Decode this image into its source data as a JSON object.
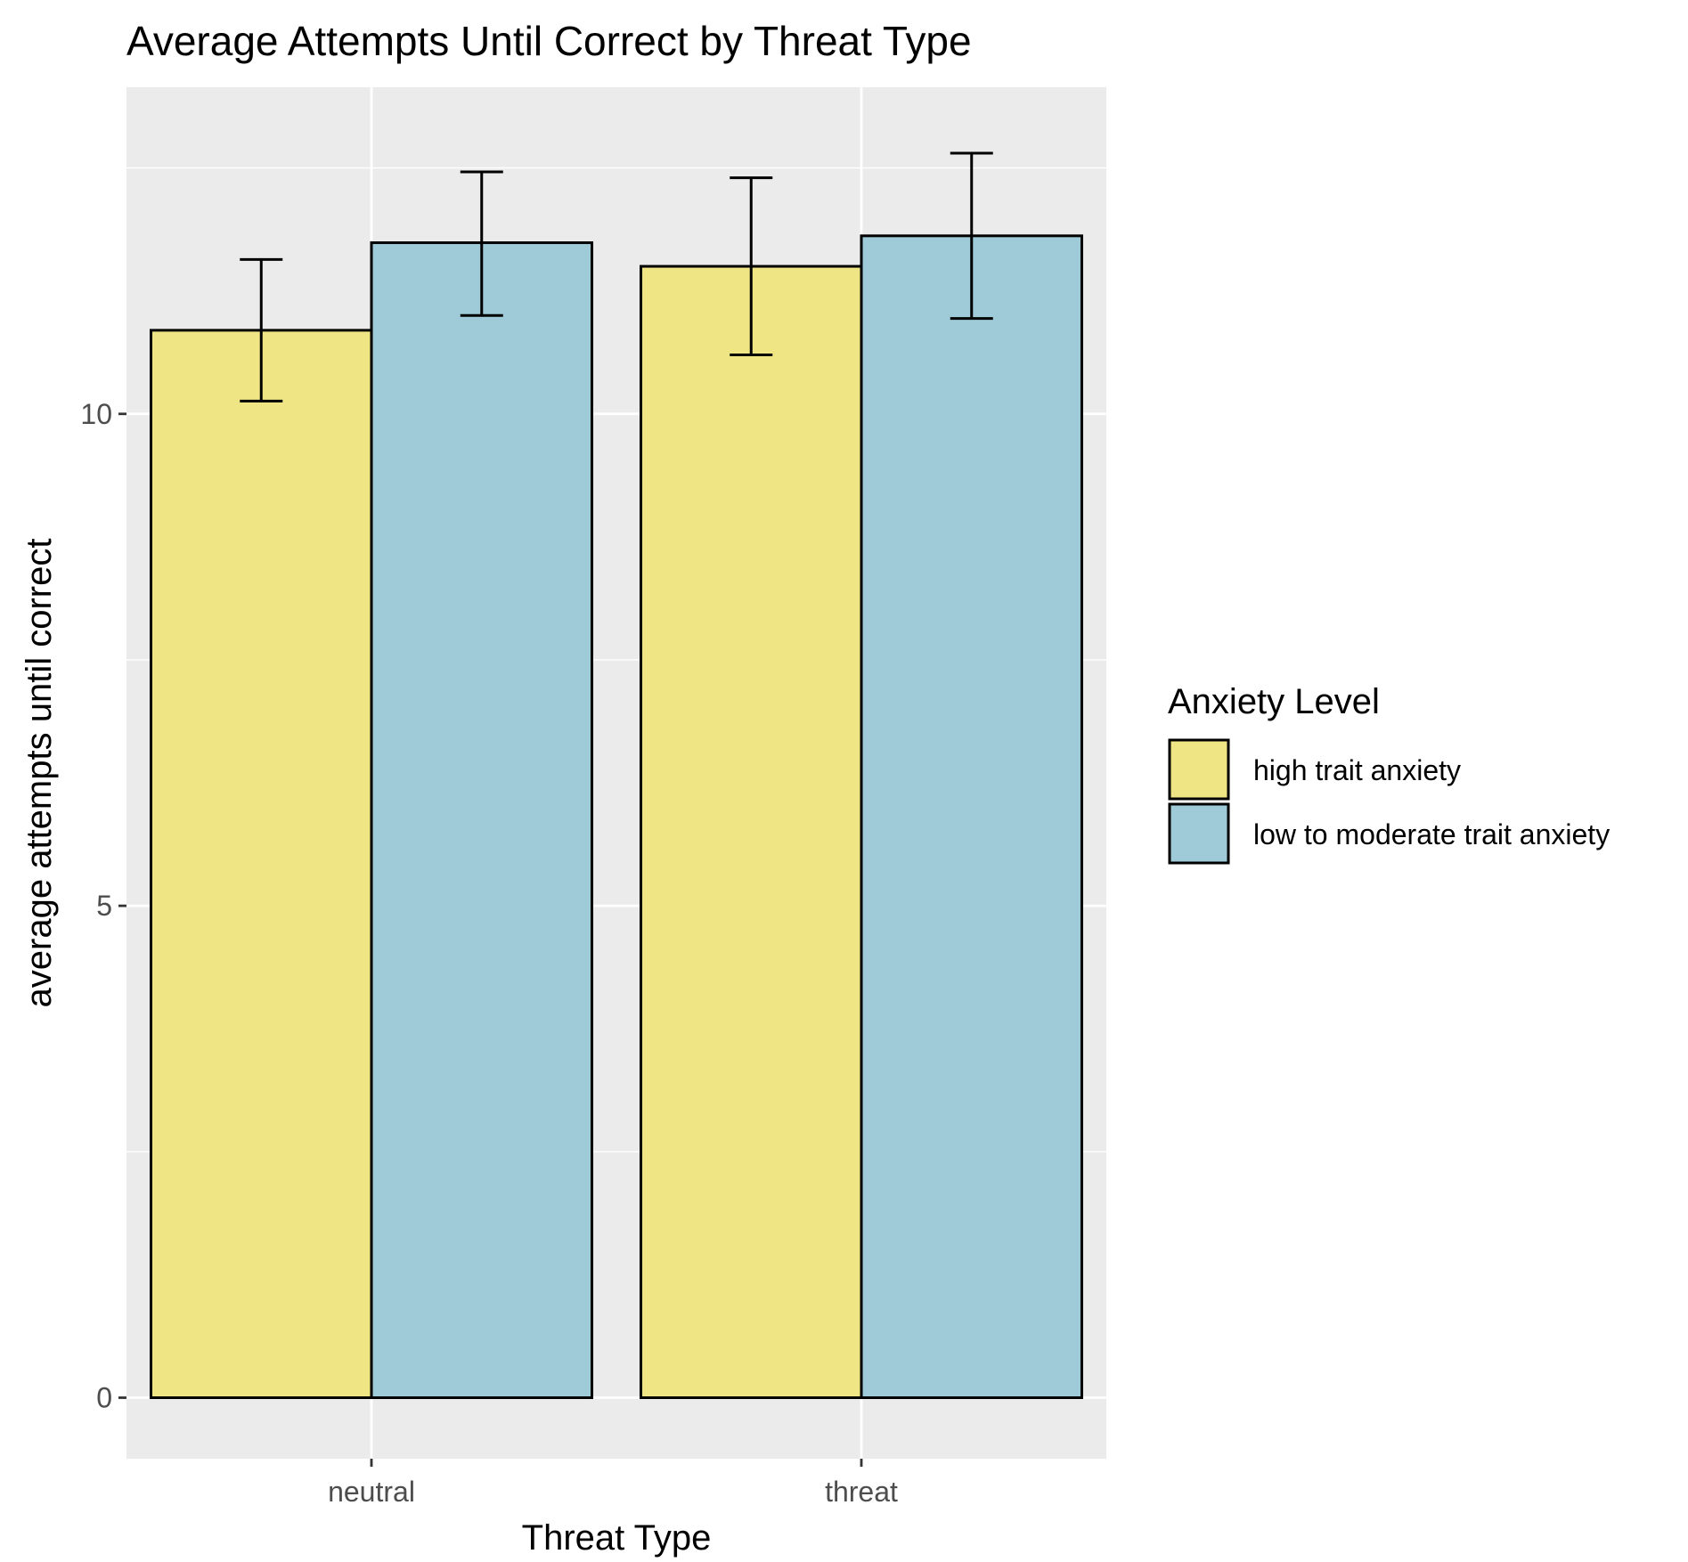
{
  "chart_data": {
    "type": "bar",
    "title": "Average Attempts Until Correct by Threat Type",
    "xlabel": "Threat Type",
    "ylabel": "average attempts until correct",
    "categories": [
      "neutral",
      "threat"
    ],
    "y_ticks": [
      0,
      5,
      10
    ],
    "ylim": [
      -0.62,
      13.32
    ],
    "grid": true,
    "legend": {
      "title": "Anxiety Level",
      "position": "right"
    },
    "series": [
      {
        "name": "high trait anxiety",
        "color": "#F0E585",
        "values": [
          10.85,
          11.5
        ],
        "error_low": [
          10.13,
          10.6
        ],
        "error_high": [
          11.57,
          12.4
        ]
      },
      {
        "name": "low to moderate trait anxiety",
        "color": "#9FCBD9",
        "values": [
          11.74,
          11.81
        ],
        "error_low": [
          11.0,
          10.97
        ],
        "error_high": [
          12.46,
          12.65
        ]
      }
    ]
  }
}
